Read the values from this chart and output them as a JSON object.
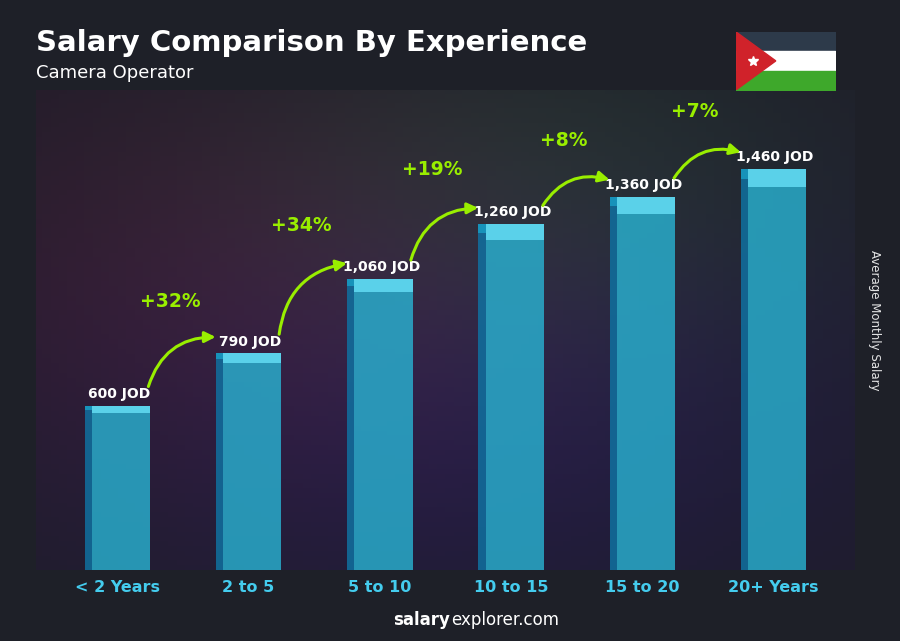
{
  "title": "Salary Comparison By Experience",
  "subtitle": "Camera Operator",
  "categories": [
    "< 2 Years",
    "2 to 5",
    "5 to 10",
    "10 to 15",
    "15 to 20",
    "20+ Years"
  ],
  "values": [
    600,
    790,
    1060,
    1260,
    1360,
    1460
  ],
  "labels": [
    "600 JOD",
    "790 JOD",
    "1,060 JOD",
    "1,260 JOD",
    "1,360 JOD",
    "1,460 JOD"
  ],
  "pct_changes": [
    "+32%",
    "+34%",
    "+19%",
    "+8%",
    "+7%"
  ],
  "bar_face_color": "#29b8d8",
  "bar_left_color": "#1070a0",
  "bar_top_color": "#60d8f0",
  "bg_overlay_color": "#1a2030",
  "bg_overlay_alpha": 0.45,
  "title_color": "#ffffff",
  "label_color": "#ffffff",
  "pct_color": "#99ee00",
  "xlabel_color": "#44ccee",
  "ylabel_text": "Average Monthly Salary",
  "watermark_bold": "salary",
  "watermark_normal": "explorer.com",
  "ylim_max": 1750,
  "bar_width": 0.5,
  "figsize": [
    9.0,
    6.41
  ],
  "dpi": 100,
  "flag_black": "#2d3a4a",
  "flag_white": "#ffffff",
  "flag_green": "#3ea82b",
  "flag_red": "#d0222a"
}
